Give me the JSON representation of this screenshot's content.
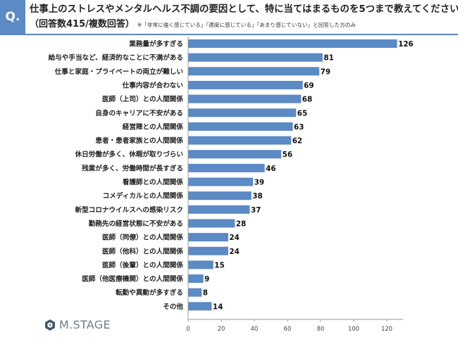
{
  "header": {
    "badge": "Q.",
    "title": "仕事上のストレスやメンタルヘルス不調の要因として、特に当てはまるものを5つまで教えてください。",
    "subtitle": "（回答数415/複数回答）",
    "note": "※「非常に強く感じている」「適度に感じている」「あまり感じていない」と回答した方のみ"
  },
  "logo": {
    "text": "M.STAGE"
  },
  "colors": {
    "bar": "#5b8ac4",
    "accent": "#5b8ac4",
    "axis": "#999999"
  },
  "chart_data": {
    "type": "bar",
    "orientation": "horizontal",
    "categories": [
      "業務量が多すぎる",
      "給与や手当など、経済的なことに不満がある",
      "仕事と家庭・プライベートの両立が難しい",
      "仕事内容が合わない",
      "医師（上司）との人間関係",
      "自身のキャリアに不安がある",
      "経営陣との人間関係",
      "患者・患者家族との人間関係",
      "休日労働が多く、休暇が取りづらい",
      "残業が多く、労働時間が長すぎる",
      "看護師との人間関係",
      "コメディカルとの人間関係",
      "新型コロナウイルスへの感染リスク",
      "勤務先の経営状態に不安がある",
      "医師（同僚）との人間関係",
      "医師（他科）との人間関係",
      "医師（後輩）との人間関係",
      "医師（他医療機関）との人間関係",
      "転勤や異動が多すぎる",
      "その他"
    ],
    "values": [
      126,
      81,
      79,
      69,
      68,
      65,
      63,
      62,
      56,
      46,
      39,
      38,
      37,
      28,
      24,
      24,
      15,
      9,
      8,
      14
    ],
    "xlim": [
      0,
      130
    ],
    "xticks": [
      0,
      20,
      40,
      60,
      80,
      100,
      120
    ],
    "grid": false,
    "legend": "none"
  }
}
